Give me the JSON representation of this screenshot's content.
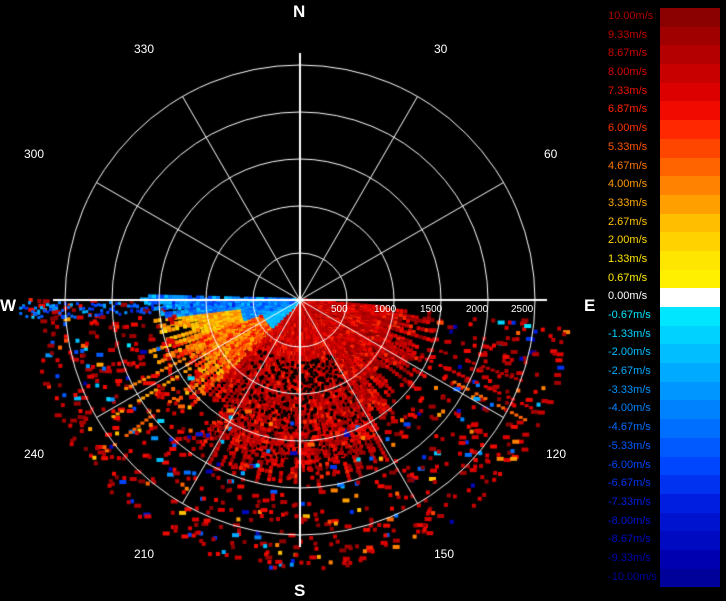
{
  "compass": {
    "north": "N",
    "south": "S",
    "east": "E",
    "west": "W"
  },
  "angle_labels": [
    "330",
    "30",
    "300",
    "60",
    "240",
    "120",
    "210",
    "150"
  ],
  "range_labels": [
    "500",
    "1000",
    "1500",
    "2000",
    "2500"
  ],
  "legend": [
    {
      "label": "10.00m/s",
      "color": "#8b0000",
      "text_color": "#b00000"
    },
    {
      "label": "9.33m/s",
      "color": "#a00000",
      "text_color": "#c00000"
    },
    {
      "label": "8.67m/s",
      "color": "#b40000",
      "text_color": "#cc0000"
    },
    {
      "label": "8.00m/s",
      "color": "#c80000",
      "text_color": "#dd0000"
    },
    {
      "label": "7.33m/s",
      "color": "#dc0000",
      "text_color": "#ee1100"
    },
    {
      "label": "6.87m/s",
      "color": "#f00a00",
      "text_color": "#ff2200"
    },
    {
      "label": "6.00m/s",
      "color": "#ff2800",
      "text_color": "#ff3300"
    },
    {
      "label": "5.33m/s",
      "color": "#ff4600",
      "text_color": "#ff5500"
    },
    {
      "label": "4.67m/s",
      "color": "#ff6400",
      "text_color": "#ff7700"
    },
    {
      "label": "4.00m/s",
      "color": "#ff8200",
      "text_color": "#ff9900"
    },
    {
      "label": "3.33m/s",
      "color": "#ffa000",
      "text_color": "#ffaa00"
    },
    {
      "label": "2.67m/s",
      "color": "#ffbe00",
      "text_color": "#ffc400"
    },
    {
      "label": "2.00m/s",
      "color": "#ffd200",
      "text_color": "#ffd700"
    },
    {
      "label": "1.33m/s",
      "color": "#ffe600",
      "text_color": "#ffe600"
    },
    {
      "label": "0.67m/s",
      "color": "#fff000",
      "text_color": "#ffee00"
    },
    {
      "label": "0.00m/s",
      "color": "#ffffff",
      "text_color": "#ffffff"
    },
    {
      "label": "-0.67m/s",
      "color": "#00e6ff",
      "text_color": "#00e6ff"
    },
    {
      "label": "-1.33m/s",
      "color": "#00d2ff",
      "text_color": "#00d2ff"
    },
    {
      "label": "-2.00m/s",
      "color": "#00beff",
      "text_color": "#00beff"
    },
    {
      "label": "-2.67m/s",
      "color": "#00aaff",
      "text_color": "#00aaff"
    },
    {
      "label": "-3.33m/s",
      "color": "#0096ff",
      "text_color": "#0096ff"
    },
    {
      "label": "-4.00m/s",
      "color": "#0082ff",
      "text_color": "#0082ff"
    },
    {
      "label": "-4.67m/s",
      "color": "#006eff",
      "text_color": "#006eff"
    },
    {
      "label": "-5.33m/s",
      "color": "#005aff",
      "text_color": "#005aff"
    },
    {
      "label": "-6.00m/s",
      "color": "#0046ff",
      "text_color": "#0046ff"
    },
    {
      "label": "-6.67m/s",
      "color": "#0032f0",
      "text_color": "#0032f0"
    },
    {
      "label": "-7.33m/s",
      "color": "#001ee0",
      "text_color": "#001ee0"
    },
    {
      "label": "-8.00m/s",
      "color": "#0014d0",
      "text_color": "#0014d0"
    },
    {
      "label": "-8.67m/s",
      "color": "#000ac0",
      "text_color": "#000ac0"
    },
    {
      "label": "-9.33m/s",
      "color": "#0000b0",
      "text_color": "#0000b0"
    },
    {
      "label": "-10.00m/s",
      "color": "#00009a",
      "text_color": "#00009a"
    }
  ],
  "colors": {
    "background": "#000000",
    "grid": "#ffffff"
  }
}
